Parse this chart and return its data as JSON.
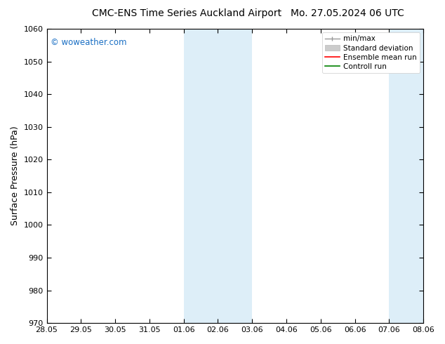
{
  "title_left": "CMC-ENS Time Series Auckland Airport",
  "title_right": "Mo. 27.05.2024 06 UTC",
  "ylabel": "Surface Pressure (hPa)",
  "ylim": [
    970,
    1060
  ],
  "yticks": [
    970,
    980,
    990,
    1000,
    1010,
    1020,
    1030,
    1040,
    1050,
    1060
  ],
  "xtick_labels": [
    "28.05",
    "29.05",
    "30.05",
    "31.05",
    "01.06",
    "02.06",
    "03.06",
    "04.06",
    "05.06",
    "06.06",
    "07.06",
    "08.06"
  ],
  "watermark": "© woweather.com",
  "watermark_color": "#1a6fc4",
  "background_color": "#ffffff",
  "shaded_regions": [
    {
      "xstart": 4,
      "xend": 6,
      "color": "#ddeef8"
    },
    {
      "xstart": 10,
      "xend": 11,
      "color": "#ddeef8"
    }
  ],
  "legend_items": [
    {
      "label": "min/max",
      "color": "#aaaaaa",
      "style": "minmax"
    },
    {
      "label": "Standard deviation",
      "color": "#cccccc",
      "style": "stddev"
    },
    {
      "label": "Ensemble mean run",
      "color": "#ff0000",
      "style": "line"
    },
    {
      "label": "Controll run",
      "color": "#008000",
      "style": "line"
    }
  ],
  "title_fontsize": 10,
  "tick_fontsize": 8,
  "legend_fontsize": 7.5,
  "ylabel_fontsize": 9
}
